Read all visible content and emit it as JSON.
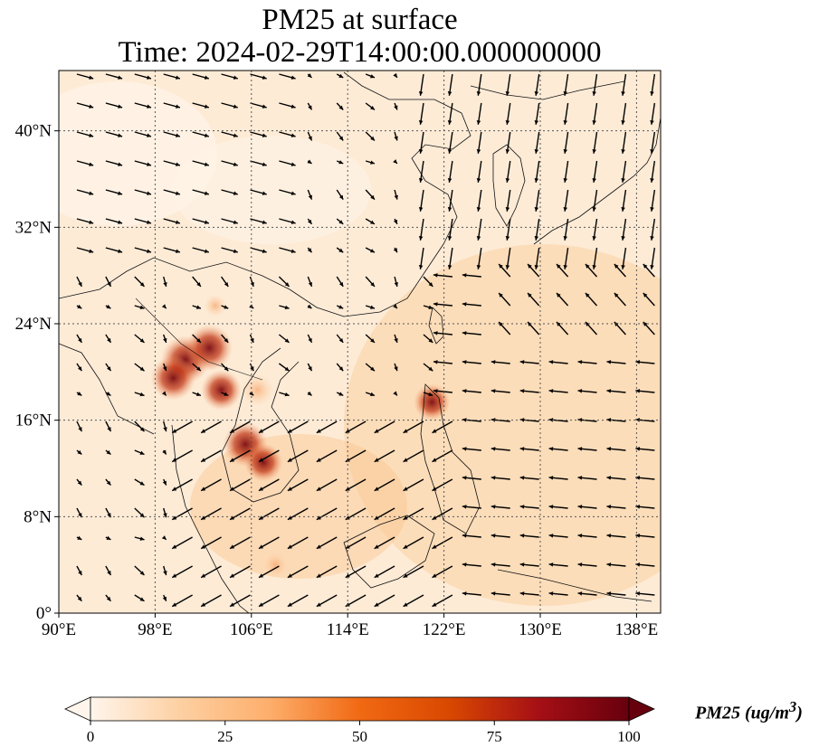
{
  "title_line1": "PM25 at surface",
  "title_line2": "Time: 2024-02-29T14:00:00.000000000",
  "chart_data": {
    "type": "heatmap",
    "variable": "PM25",
    "overlay": "wind vectors",
    "x_ticks": [
      "90°E",
      "98°E",
      "106°E",
      "114°E",
      "122°E",
      "130°E",
      "138°E"
    ],
    "x_tick_values": [
      90,
      98,
      106,
      114,
      122,
      130,
      138
    ],
    "y_ticks": [
      "0°",
      "8°N",
      "16°N",
      "24°N",
      "32°N",
      "40°N"
    ],
    "y_tick_values": [
      0,
      8,
      16,
      24,
      32,
      40
    ],
    "xlim": [
      90,
      140
    ],
    "ylim": [
      0,
      45
    ],
    "grid": true,
    "colorbar": {
      "label": "PM25 (ug/m",
      "label_sup": "3",
      "label_close": ")",
      "ticks": [
        "0",
        "25",
        "50",
        "75",
        "100"
      ],
      "tick_values": [
        0,
        25,
        50,
        75,
        100
      ],
      "range": [
        0,
        100
      ],
      "colormap": [
        "#fff5eb",
        "#fdd0a2",
        "#fdae6b",
        "#f16913",
        "#d94801",
        "#a50f15",
        "#67000d"
      ]
    },
    "hotspots": [
      {
        "lon": 100.5,
        "lat": 21.0,
        "value": 95
      },
      {
        "lon": 102.5,
        "lat": 22.0,
        "value": 90
      },
      {
        "lon": 99.5,
        "lat": 19.5,
        "value": 85
      },
      {
        "lon": 103.5,
        "lat": 18.5,
        "value": 75
      },
      {
        "lon": 105.5,
        "lat": 14.0,
        "value": 85
      },
      {
        "lon": 107.0,
        "lat": 12.5,
        "value": 70
      },
      {
        "lon": 106.5,
        "lat": 18.5,
        "value": 55
      },
      {
        "lon": 121.0,
        "lat": 17.5,
        "value": 65
      },
      {
        "lon": 103.0,
        "lat": 25.5,
        "value": 30
      },
      {
        "lon": 108.0,
        "lat": 4.0,
        "value": 35
      }
    ]
  }
}
